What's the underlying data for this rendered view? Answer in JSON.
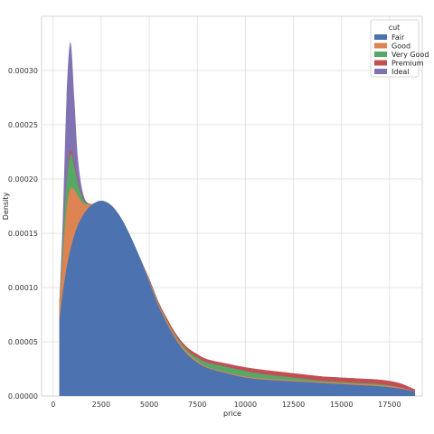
{
  "chart_data": {
    "type": "area",
    "stacked": true,
    "xlabel": "price",
    "ylabel": "Density",
    "xlim": [
      -600,
      19200
    ],
    "ylim": [
      0,
      0.00035
    ],
    "xticks": [
      0,
      2500,
      5000,
      7500,
      10000,
      12500,
      15000,
      17500
    ],
    "xtick_labels": [
      "0",
      "2500",
      "5000",
      "7500",
      "10000",
      "12500",
      "15000",
      "17500"
    ],
    "yticks": [
      0,
      5e-05,
      0.0001,
      0.00015,
      0.0002,
      0.00025,
      0.0003
    ],
    "ytick_labels": [
      "0.00000",
      "0.00005",
      "0.00010",
      "0.00015",
      "0.00020",
      "0.00025",
      "0.00030"
    ],
    "grid": true,
    "legend": {
      "title": "cut",
      "placement": "top-right"
    },
    "x": [
      326,
      500,
      700,
      900,
      1100,
      1300,
      1600,
      2000,
      2500,
      3000,
      3500,
      4000,
      4500,
      5000,
      5500,
      6000,
      6500,
      7000,
      7500,
      8000,
      9000,
      10000,
      11000,
      12000,
      13000,
      14000,
      15000,
      16000,
      17000,
      18000,
      18823
    ],
    "series": [
      {
        "name": "Fair",
        "color": "#4c72b0",
        "values": [
          7e-05,
          9.5e-05,
          0.000118,
          0.000135,
          0.000148,
          0.000158,
          0.000168,
          0.000176,
          0.00018,
          0.000176,
          0.000165,
          0.000148,
          0.000128,
          0.000105,
          8.2e-05,
          6.4e-05,
          4.9e-05,
          3.8e-05,
          3.1e-05,
          2.6e-05,
          2.1e-05,
          1.7e-05,
          1.5e-05,
          1.4e-05,
          1.3e-05,
          1.2e-05,
          1.1e-05,
          1e-05,
          9e-06,
          7e-06,
          4e-06
        ]
      },
      {
        "name": "Good",
        "color": "#dd8452",
        "values": [
          1.2e-05,
          3.3e-05,
          5.4e-05,
          5.6e-05,
          4.2e-05,
          2.6e-05,
          9e-06,
          1e-06,
          0,
          0,
          0,
          0,
          0,
          1e-06,
          1.5e-06,
          2e-06,
          2e-06,
          2e-06,
          1.5e-06,
          1e-06,
          1e-06,
          1e-06,
          1e-06,
          1e-06,
          1e-06,
          1e-06,
          1e-06,
          1e-06,
          1e-06,
          1e-06,
          0
        ]
      },
      {
        "name": "Very Good",
        "color": "#55a868",
        "values": [
          3e-06,
          1.2e-05,
          2.5e-05,
          3.2e-05,
          2.2e-05,
          1.1e-05,
          3e-06,
          0,
          0,
          0,
          0,
          0,
          0,
          1e-06,
          1e-06,
          1e-06,
          1.5e-06,
          2e-06,
          3e-06,
          4e-06,
          5e-06,
          5e-06,
          4e-06,
          3e-06,
          2e-06,
          1e-06,
          1e-06,
          1e-06,
          1e-06,
          0,
          0
        ]
      },
      {
        "name": "Premium",
        "color": "#c44e52",
        "values": [
          1e-06,
          2e-06,
          3e-06,
          3e-06,
          3e-06,
          2e-06,
          1e-06,
          0,
          0,
          0,
          0,
          0,
          0,
          1e-06,
          1.5e-06,
          2e-06,
          2e-06,
          2.5e-06,
          3e-06,
          3e-06,
          3e-06,
          3.5e-06,
          4e-06,
          4e-06,
          4e-06,
          4e-06,
          4e-06,
          4e-06,
          4e-06,
          4e-06,
          2e-06
        ]
      },
      {
        "name": "Ideal",
        "color": "#8172b2",
        "values": [
          0,
          2e-05,
          7.5e-05,
          0.0001,
          6e-05,
          2e-05,
          3e-06,
          0,
          0,
          0,
          0,
          0,
          0,
          0,
          0,
          0,
          0,
          0,
          0,
          0,
          0,
          0,
          0,
          0,
          0,
          0,
          0,
          0,
          0,
          0,
          0
        ]
      }
    ]
  }
}
